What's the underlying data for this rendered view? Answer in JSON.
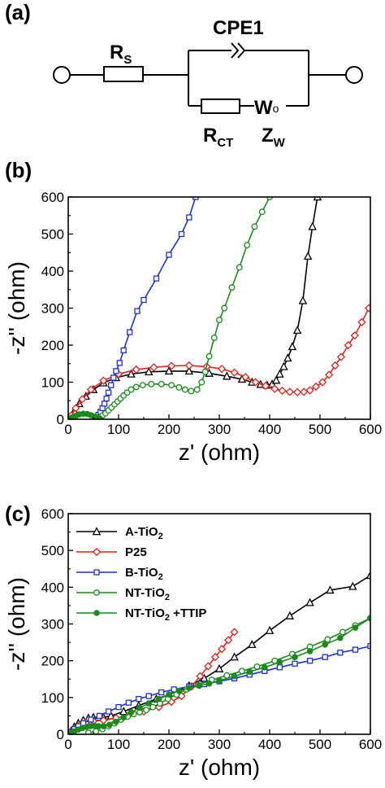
{
  "panels": {
    "a": "(a)",
    "b": "(b)",
    "c": "(c)"
  },
  "circuit": {
    "rs": "R",
    "rs_sub": "S",
    "cpe": "CPE1",
    "rct": "R",
    "rct_sub": "CT",
    "wo": "W",
    "wo_sub": "o",
    "zw": "Z",
    "zw_sub": "W"
  },
  "chart_data": [
    {
      "type": "scatter",
      "panel": "(b)",
      "xlabel": "z' (ohm)",
      "ylabel": "-z'' (ohm)",
      "xlim": [
        0,
        600
      ],
      "ylim": [
        0,
        600
      ],
      "xticks": [
        "0",
        "100",
        "200",
        "300",
        "400",
        "500",
        "600"
      ],
      "yticks": [
        "0",
        "100",
        "200",
        "300",
        "400",
        "500",
        "600"
      ],
      "grid": false,
      "series": [
        {
          "key": "A",
          "color": "#000000",
          "marker": "triangle",
          "points": [
            [
              5,
              6
            ],
            [
              12,
              22
            ],
            [
              22,
              42
            ],
            [
              35,
              62
            ],
            [
              50,
              80
            ],
            [
              70,
              98
            ],
            [
              95,
              112
            ],
            [
              125,
              122
            ],
            [
              160,
              128
            ],
            [
              200,
              130
            ],
            [
              240,
              130
            ],
            [
              280,
              124
            ],
            [
              315,
              116
            ],
            [
              345,
              108
            ],
            [
              365,
              100
            ],
            [
              382,
              94
            ],
            [
              395,
              92
            ],
            [
              405,
              95
            ],
            [
              413,
              105
            ],
            [
              420,
              122
            ],
            [
              428,
              142
            ],
            [
              436,
              165
            ],
            [
              445,
              196
            ],
            [
              455,
              240
            ],
            [
              466,
              320
            ],
            [
              476,
              440
            ],
            [
              485,
              520
            ],
            [
              495,
              600
            ]
          ]
        },
        {
          "key": "P25",
          "color": "#e3201b",
          "marker": "diamond",
          "points": [
            [
              6,
              10
            ],
            [
              15,
              30
            ],
            [
              28,
              54
            ],
            [
              45,
              80
            ],
            [
              70,
              104
            ],
            [
              100,
              122
            ],
            [
              135,
              134
            ],
            [
              170,
              140
            ],
            [
              205,
              144
            ],
            [
              240,
              145
            ],
            [
              275,
              142
            ],
            [
              305,
              136
            ],
            [
              330,
              126
            ],
            [
              352,
              114
            ],
            [
              372,
              100
            ],
            [
              392,
              90
            ],
            [
              410,
              82
            ],
            [
              425,
              77
            ],
            [
              440,
              74
            ],
            [
              455,
              73
            ],
            [
              468,
              74
            ],
            [
              480,
              78
            ],
            [
              492,
              88
            ],
            [
              505,
              100
            ],
            [
              518,
              120
            ],
            [
              530,
              145
            ],
            [
              542,
              168
            ],
            [
              556,
              200
            ],
            [
              569,
              226
            ],
            [
              583,
              262
            ],
            [
              597,
              300
            ]
          ]
        },
        {
          "key": "B",
          "color": "#1f2fd6",
          "marker": "square",
          "points": [
            [
              55,
              5
            ],
            [
              60,
              12
            ],
            [
              64,
              20
            ],
            [
              68,
              30
            ],
            [
              72,
              42
            ],
            [
              76,
              56
            ],
            [
              80,
              72
            ],
            [
              85,
              92
            ],
            [
              90,
              112
            ],
            [
              95,
              130
            ],
            [
              102,
              152
            ],
            [
              110,
              186
            ],
            [
              122,
              235
            ],
            [
              137,
              292
            ],
            [
              150,
              322
            ],
            [
              175,
              380
            ],
            [
              200,
              444
            ],
            [
              225,
              500
            ],
            [
              240,
              545
            ],
            [
              253,
              600
            ]
          ]
        },
        {
          "key": "NT",
          "color": "#1a8a1a",
          "marker": "circle",
          "points": [
            [
              55,
              3
            ],
            [
              62,
              6
            ],
            [
              68,
              10
            ],
            [
              74,
              16
            ],
            [
              80,
              24
            ],
            [
              86,
              32
            ],
            [
              92,
              40
            ],
            [
              98,
              48
            ],
            [
              104,
              56
            ],
            [
              110,
              64
            ],
            [
              117,
              72
            ],
            [
              125,
              80
            ],
            [
              135,
              87
            ],
            [
              148,
              92
            ],
            [
              165,
              95
            ],
            [
              185,
              95
            ],
            [
              205,
              92
            ],
            [
              220,
              86
            ],
            [
              232,
              80
            ],
            [
              244,
              76
            ],
            [
              256,
              80
            ],
            [
              265,
              100
            ],
            [
              272,
              128
            ],
            [
              280,
              170
            ],
            [
              290,
              220
            ],
            [
              300,
              268
            ],
            [
              310,
              300
            ],
            [
              325,
              356
            ],
            [
              340,
              410
            ],
            [
              355,
              470
            ],
            [
              370,
              520
            ],
            [
              385,
              560
            ],
            [
              400,
              600
            ]
          ]
        },
        {
          "key": "NTT",
          "color": "#1a8a1a",
          "marker": "filled-circle",
          "points": [
            [
              3,
              2
            ],
            [
              8,
              5
            ],
            [
              15,
              9
            ],
            [
              22,
              13
            ],
            [
              30,
              15
            ],
            [
              38,
              14
            ],
            [
              45,
              11
            ],
            [
              52,
              7
            ],
            [
              58,
              4
            ],
            [
              63,
              2
            ]
          ]
        }
      ]
    },
    {
      "type": "scatter",
      "panel": "(c)",
      "xlabel": "z' (ohm)",
      "ylabel": "-z'' (ohm)",
      "xlim": [
        0,
        600
      ],
      "ylim": [
        0,
        600
      ],
      "xticks": [
        "0",
        "100",
        "200",
        "300",
        "400",
        "500",
        "600"
      ],
      "yticks": [
        "0",
        "100",
        "200",
        "300",
        "400",
        "500",
        "600"
      ],
      "grid": false,
      "legend_position": "top-left",
      "series": [
        {
          "key": "A",
          "name": "A-TiO",
          "name_sub": "2",
          "name_tail": "",
          "color": "#000000",
          "marker": "triangle",
          "points": [
            [
              5,
              8
            ],
            [
              12,
              20
            ],
            [
              20,
              30
            ],
            [
              30,
              38
            ],
            [
              40,
              44
            ],
            [
              50,
              46
            ],
            [
              60,
              46
            ],
            [
              70,
              46
            ],
            [
              85,
              50
            ],
            [
              110,
              62
            ],
            [
              140,
              78
            ],
            [
              175,
              96
            ],
            [
              210,
              112
            ],
            [
              240,
              132
            ],
            [
              270,
              152
            ],
            [
              300,
              178
            ],
            [
              330,
              210
            ],
            [
              365,
              244
            ],
            [
              400,
              282
            ],
            [
              440,
              322
            ],
            [
              480,
              358
            ],
            [
              520,
              392
            ],
            [
              565,
              402
            ],
            [
              600,
              432
            ]
          ]
        },
        {
          "key": "P25",
          "name": "P25",
          "name_sub": "",
          "name_tail": "",
          "color": "#e3201b",
          "marker": "diamond",
          "points": [
            [
              5,
              6
            ],
            [
              12,
              16
            ],
            [
              22,
              25
            ],
            [
              35,
              32
            ],
            [
              50,
              36
            ],
            [
              70,
              38
            ],
            [
              95,
              44
            ],
            [
              120,
              52
            ],
            [
              150,
              62
            ],
            [
              180,
              74
            ],
            [
              205,
              88
            ],
            [
              225,
              104
            ],
            [
              245,
              130
            ],
            [
              262,
              158
            ],
            [
              278,
              185
            ],
            [
              292,
              210
            ],
            [
              305,
              232
            ],
            [
              318,
              256
            ],
            [
              330,
              278
            ]
          ]
        },
        {
          "key": "B",
          "name": "B-TiO",
          "name_sub": "2",
          "name_tail": "",
          "color": "#1f2fd6",
          "marker": "square",
          "points": [
            [
              5,
              6
            ],
            [
              12,
              14
            ],
            [
              20,
              22
            ],
            [
              30,
              30
            ],
            [
              45,
              40
            ],
            [
              62,
              50
            ],
            [
              80,
              62
            ],
            [
              100,
              74
            ],
            [
              120,
              86
            ],
            [
              140,
              96
            ],
            [
              160,
              104
            ],
            [
              185,
              114
            ],
            [
              210,
              122
            ],
            [
              240,
              130
            ],
            [
              270,
              136
            ],
            [
              300,
              144
            ],
            [
              330,
              152
            ],
            [
              360,
              162
            ],
            [
              390,
              172
            ],
            [
              420,
              182
            ],
            [
              450,
              192
            ],
            [
              480,
              200
            ],
            [
              510,
              210
            ],
            [
              540,
              222
            ],
            [
              570,
              230
            ],
            [
              600,
              240
            ]
          ]
        },
        {
          "key": "NT",
          "name": "NT-TiO",
          "name_sub": "2",
          "name_tail": "",
          "color": "#1a8a1a",
          "marker": "circle",
          "points": [
            [
              40,
              4
            ],
            [
              55,
              8
            ],
            [
              68,
              14
            ],
            [
              80,
              22
            ],
            [
              92,
              30
            ],
            [
              105,
              40
            ],
            [
              118,
              48
            ],
            [
              130,
              55
            ],
            [
              142,
              60
            ],
            [
              155,
              66
            ],
            [
              168,
              74
            ],
            [
              182,
              84
            ],
            [
              198,
              96
            ],
            [
              215,
              108
            ],
            [
              235,
              122
            ],
            [
              258,
              134
            ],
            [
              285,
              148
            ],
            [
              315,
              160
            ],
            [
              345,
              172
            ],
            [
              375,
              184
            ],
            [
              410,
              200
            ],
            [
              445,
              218
            ],
            [
              480,
              238
            ],
            [
              515,
              258
            ],
            [
              545,
              278
            ],
            [
              570,
              296
            ],
            [
              600,
              316
            ]
          ]
        },
        {
          "key": "NTT",
          "name": "NT-TiO",
          "name_sub": "2",
          "name_tail": " +TTIP",
          "color": "#1a8a1a",
          "marker": "filled-circle",
          "points": [
            [
              5,
              3
            ],
            [
              12,
              8
            ],
            [
              20,
              13
            ],
            [
              28,
              17
            ],
            [
              36,
              20
            ],
            [
              44,
              22
            ],
            [
              52,
              23
            ],
            [
              60,
              22
            ],
            [
              70,
              22
            ],
            [
              82,
              26
            ],
            [
              95,
              34
            ],
            [
              110,
              46
            ],
            [
              125,
              60
            ],
            [
              142,
              72
            ],
            [
              160,
              84
            ],
            [
              180,
              96
            ],
            [
              200,
              108
            ],
            [
              220,
              118
            ],
            [
              240,
              126
            ],
            [
              260,
              132
            ],
            [
              280,
              138
            ],
            [
              300,
              146
            ],
            [
              330,
              158
            ],
            [
              360,
              170
            ],
            [
              390,
              182
            ],
            [
              420,
              196
            ],
            [
              450,
              210
            ],
            [
              480,
              226
            ],
            [
              510,
              244
            ],
            [
              540,
              262
            ],
            [
              570,
              290
            ],
            [
              600,
              316
            ]
          ]
        }
      ]
    }
  ]
}
